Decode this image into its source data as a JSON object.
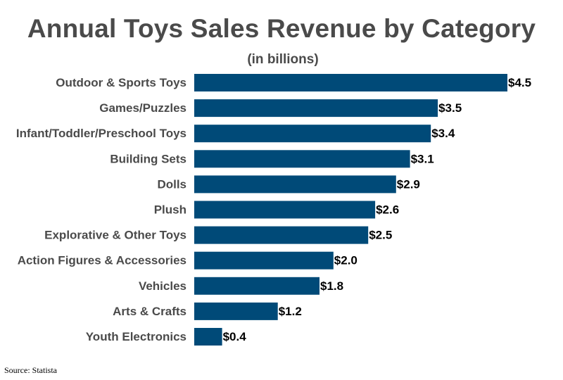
{
  "colors": {
    "bar": "#004a78",
    "title": "#4a4a4a",
    "label": "#4a4a4a",
    "value": "#000000"
  },
  "chart_data": {
    "type": "bar",
    "orientation": "horizontal",
    "title": "Annual Toys Sales Revenue by Category",
    "subtitle": "(in billions)",
    "xlabel": "",
    "ylabel": "",
    "xlim": [
      0,
      4.5
    ],
    "grid": false,
    "legend": "none",
    "value_prefix": "$",
    "categories": [
      "Outdoor & Sports Toys",
      "Games/Puzzles",
      "Infant/Toddler/Preschool Toys",
      "Building Sets",
      "Dolls",
      "Plush",
      "Explorative & Other Toys",
      "Action Figures & Accessories",
      "Vehicles",
      "Arts & Crafts",
      "Youth Electronics"
    ],
    "values": [
      4.5,
      3.5,
      3.4,
      3.1,
      2.9,
      2.6,
      2.5,
      2.0,
      1.8,
      1.2,
      0.4
    ],
    "value_labels": [
      "$4.5",
      "$3.5",
      "$3.4",
      "$3.1",
      "$2.9",
      "$2.6",
      "$2.5",
      "$2.0",
      "$1.8",
      "$1.2",
      "$0.4"
    ]
  },
  "source": "Source: Statista"
}
